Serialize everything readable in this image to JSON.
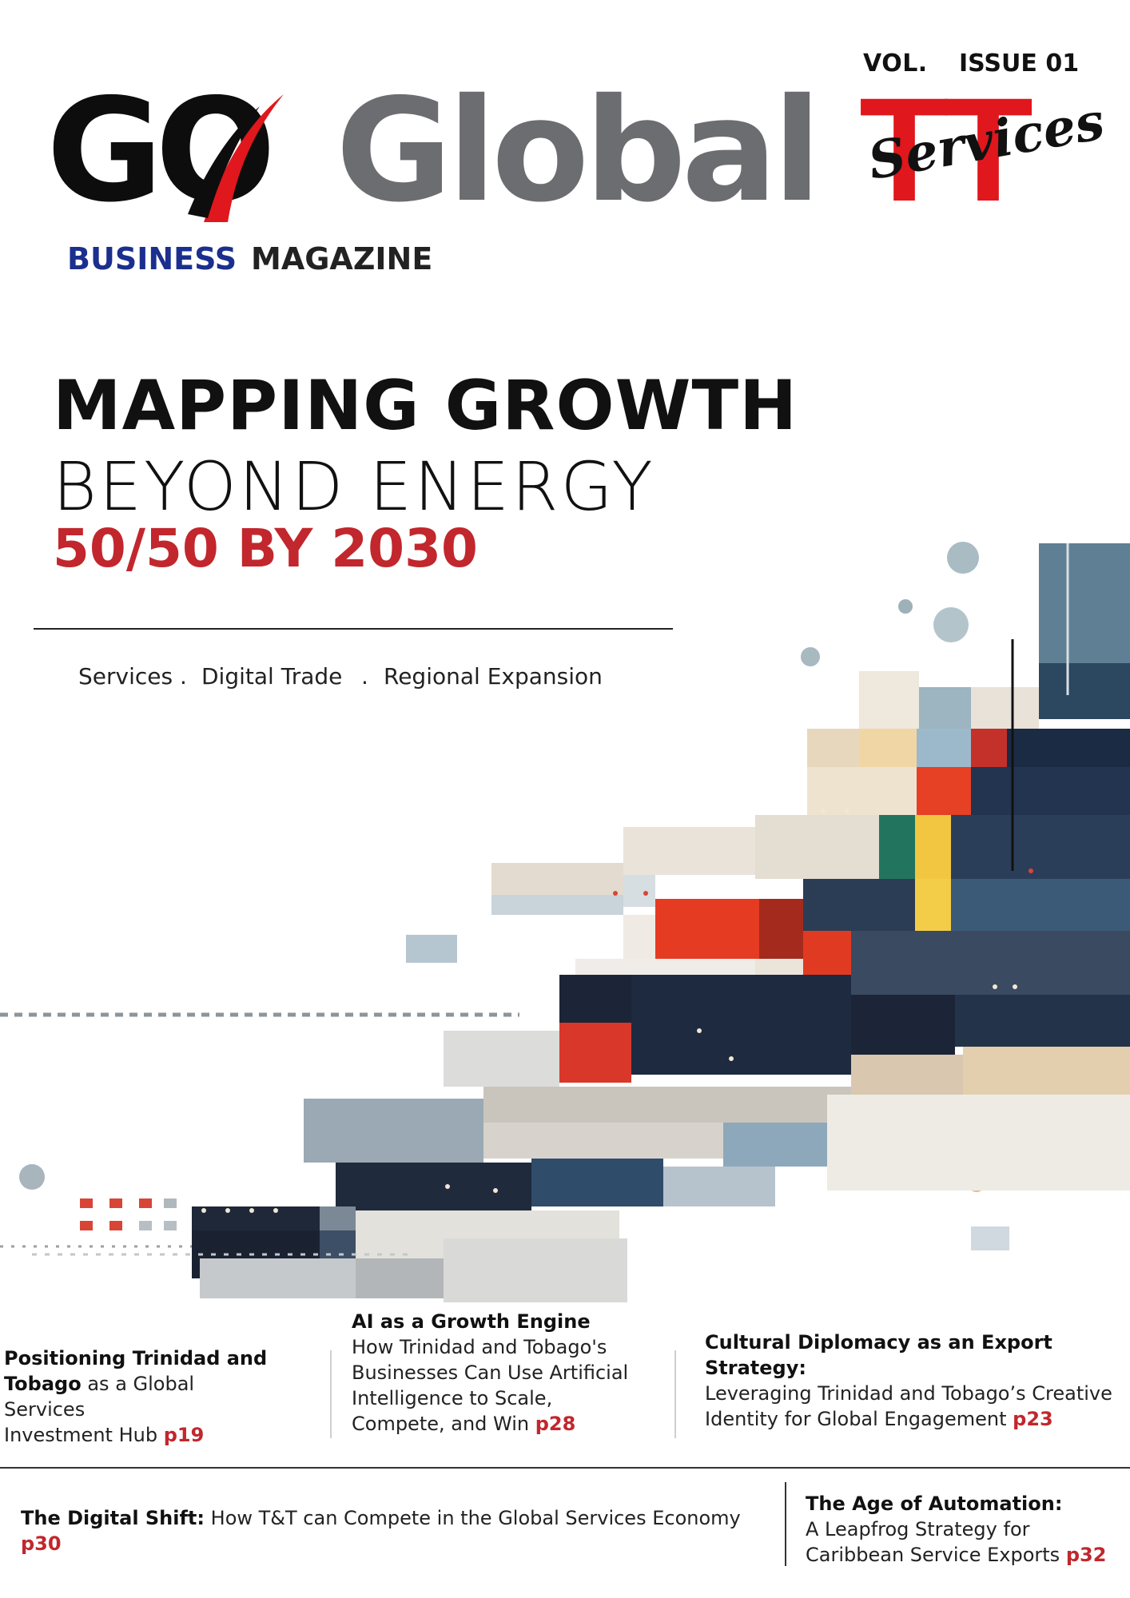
{
  "masthead": {
    "vol": "VOL.",
    "issue": "ISSUE 01",
    "logo_go": "GO",
    "logo_global": "Global",
    "logo_tt": "TT",
    "logo_services": "Services",
    "business": "BUSINESS",
    "magazine": "MAGAZINE"
  },
  "headline": {
    "line1": "MAPPING GROWTH",
    "line2": "BEYOND ENERGY",
    "line3": "50/50 BY 2030"
  },
  "tags": [
    "Services .",
    "Digital Trade",
    ".",
    "Regional Expansion"
  ],
  "stories": [
    {
      "bold": "Positioning Trinidad and",
      "bold2": "Tobago",
      "text": " as a Global Services",
      "text2": "Investment Hub ",
      "page": "p19"
    },
    {
      "title": "AI as a Growth Engine",
      "lines": [
        "How Trinidad and Tobago's",
        "Businesses Can Use Artificial",
        "Intelligence to Scale,",
        "Compete, and Win "
      ],
      "page": "p28"
    },
    {
      "title_lines": [
        "Cultural Diplomacy as an Export",
        "Strategy:"
      ],
      "lines": [
        "Leveraging Trinidad and Tobago’s Creative",
        "Identity for Global Engagement "
      ],
      "page": "p23"
    },
    {
      "title": "The Digital Shift:",
      "text": " How T&T can Compete in the Global Services Economy",
      "page": "p30"
    },
    {
      "title": "The Age of Automation:",
      "lines": [
        "A Leapfrog Strategy for",
        "Caribbean Service Exports "
      ],
      "page": "p32"
    }
  ],
  "colors": {
    "brand_red": "#e0171c",
    "accent_red": "#c1272d",
    "navy": "#1b2f8e",
    "grey": "#6c6d70"
  },
  "art": "abstract pixel mosaic illustration"
}
